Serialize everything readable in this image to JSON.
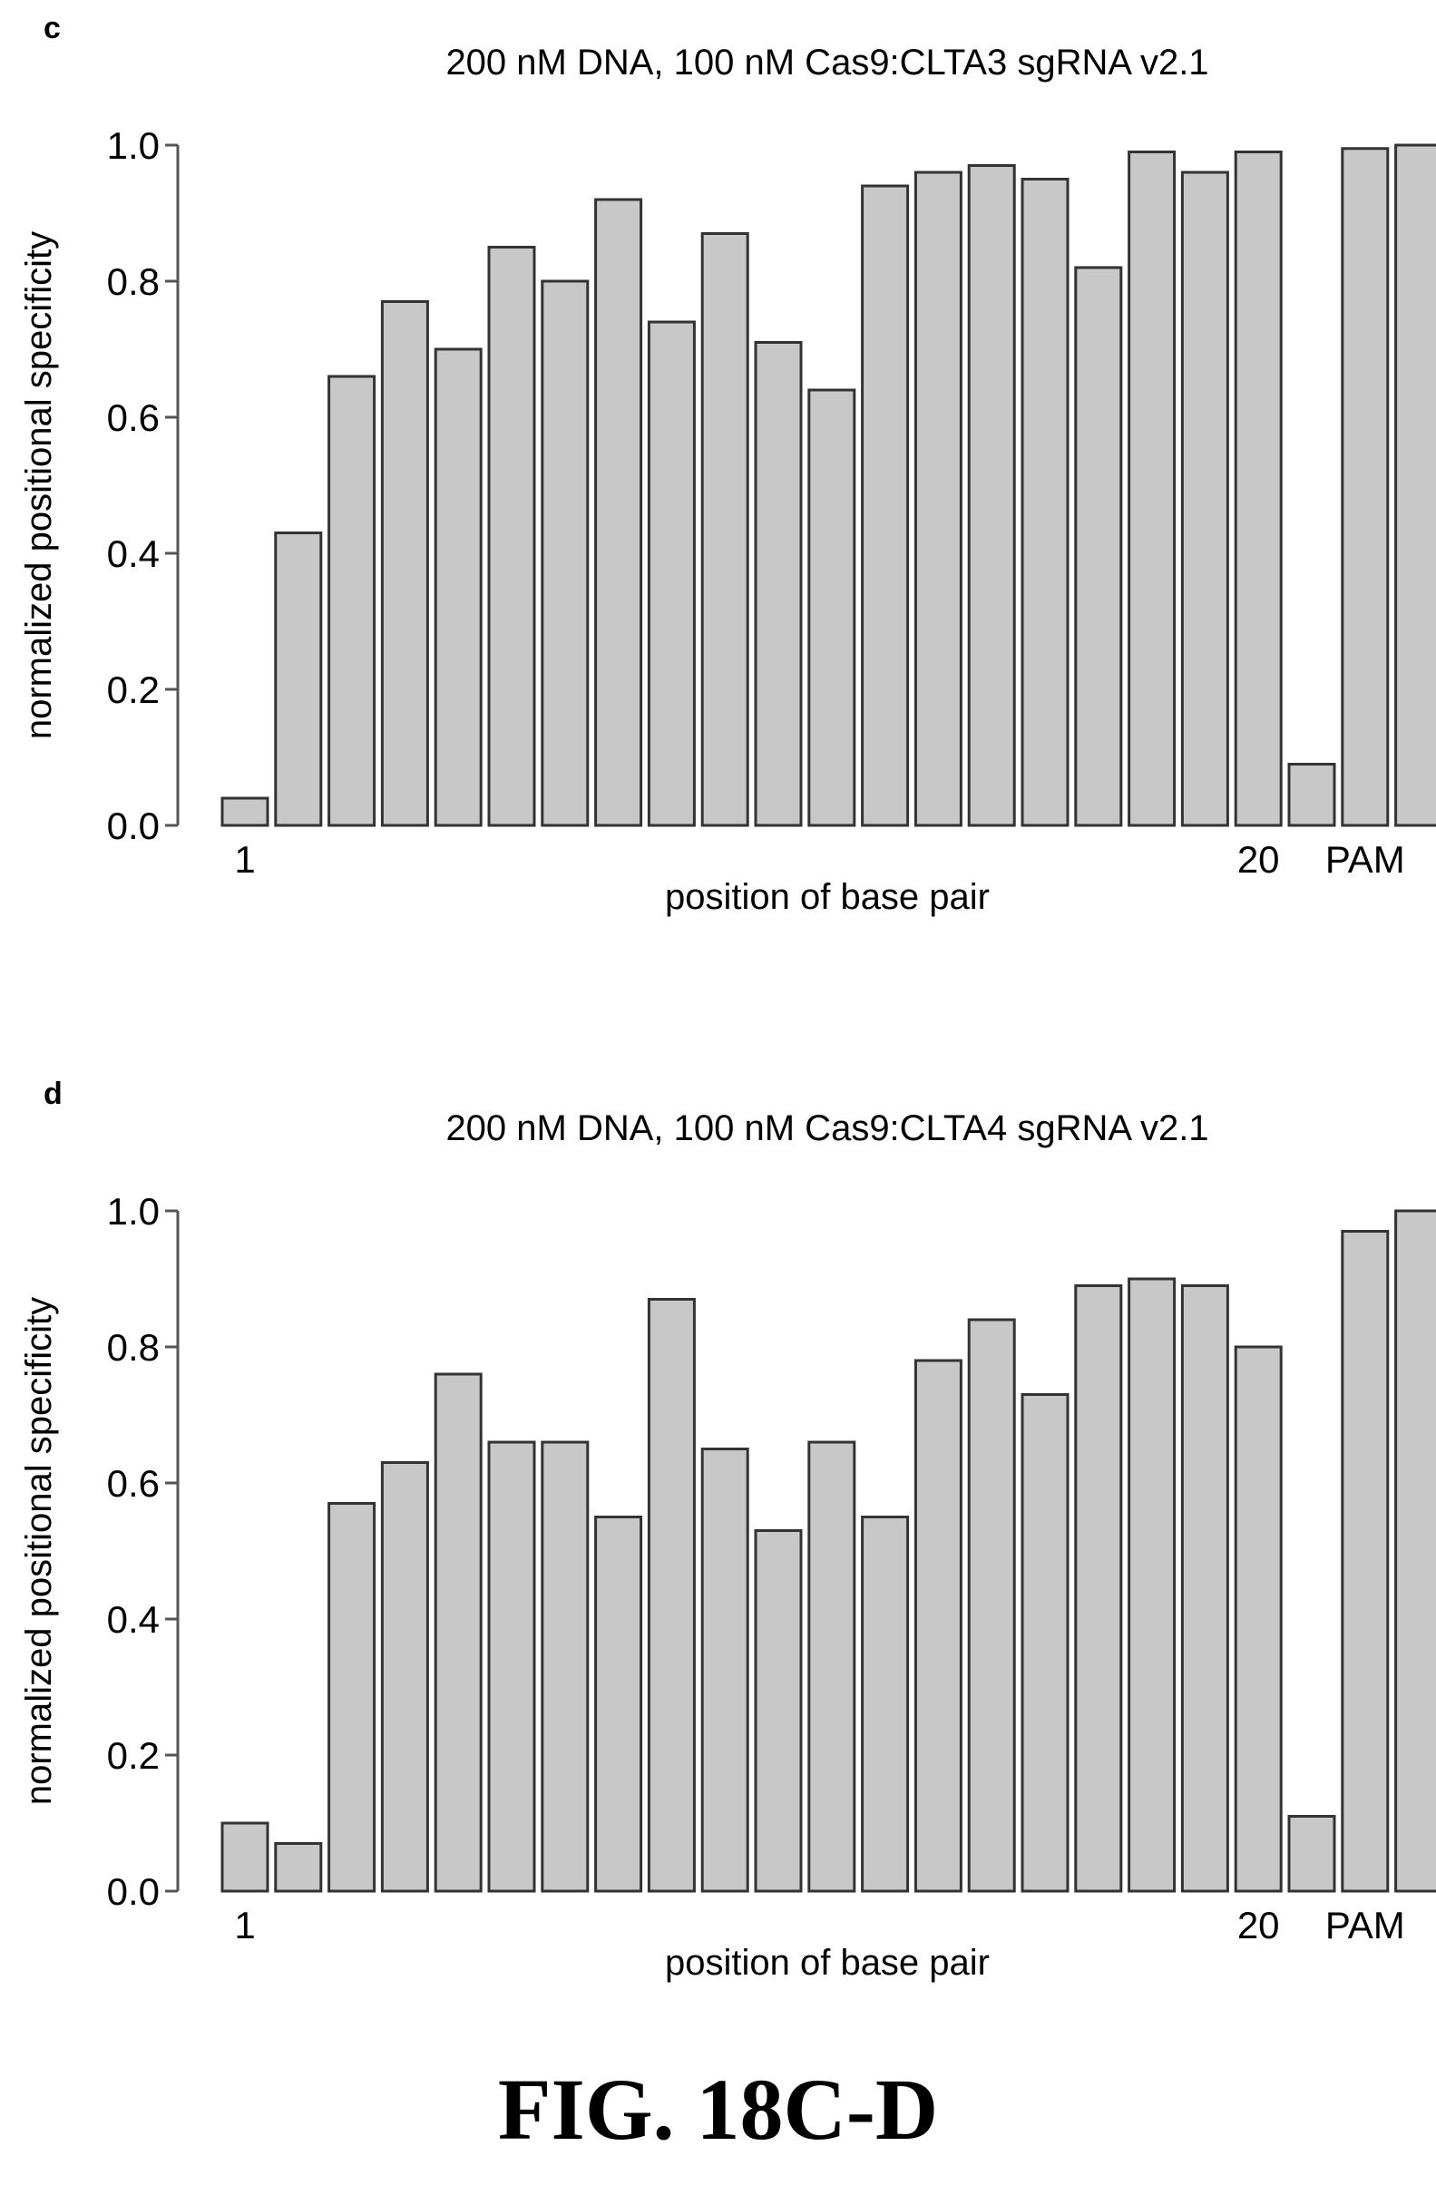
{
  "figure_caption": "FIG. 18C-D",
  "colors": {
    "bar_fill": "#c8c8c8",
    "bar_edge": "#333333",
    "axis": "#555555"
  },
  "chart_data": [
    {
      "panel_label": "c",
      "type": "bar",
      "title": "200 nM DNA, 100 nM Cas9:CLTA3 sgRNA v2.1",
      "xlabel": "position of base pair",
      "ylabel": "normalized positional specificity",
      "ylim": [
        0,
        1.0
      ],
      "yticks": [
        "0.0",
        "0.2",
        "0.4",
        "0.6",
        "0.8",
        "1.0"
      ],
      "x_tick_labels": [
        {
          "index": 0,
          "label": "1"
        },
        {
          "index": 19,
          "label": "20"
        },
        {
          "index": 21,
          "label": "PAM"
        }
      ],
      "grid": false,
      "values": [
        0.04,
        0.43,
        0.66,
        0.77,
        0.7,
        0.85,
        0.8,
        0.92,
        0.74,
        0.87,
        0.71,
        0.64,
        0.94,
        0.96,
        0.97,
        0.95,
        0.82,
        0.99,
        0.96,
        0.99,
        0.09,
        0.995,
        1.0
      ]
    },
    {
      "panel_label": "d",
      "type": "bar",
      "title": "200 nM DNA, 100 nM Cas9:CLTA4 sgRNA v2.1",
      "xlabel": "position of base pair",
      "ylabel": "normalized positional specificity",
      "ylim": [
        0,
        1.0
      ],
      "yticks": [
        "0.0",
        "0.2",
        "0.4",
        "0.6",
        "0.8",
        "1.0"
      ],
      "x_tick_labels": [
        {
          "index": 0,
          "label": "1"
        },
        {
          "index": 19,
          "label": "20"
        },
        {
          "index": 21,
          "label": "PAM"
        }
      ],
      "grid": false,
      "values": [
        0.1,
        0.07,
        0.57,
        0.63,
        0.76,
        0.66,
        0.66,
        0.55,
        0.87,
        0.65,
        0.53,
        0.66,
        0.55,
        0.78,
        0.84,
        0.73,
        0.89,
        0.9,
        0.89,
        0.8,
        0.11,
        0.97,
        1.0
      ]
    }
  ]
}
